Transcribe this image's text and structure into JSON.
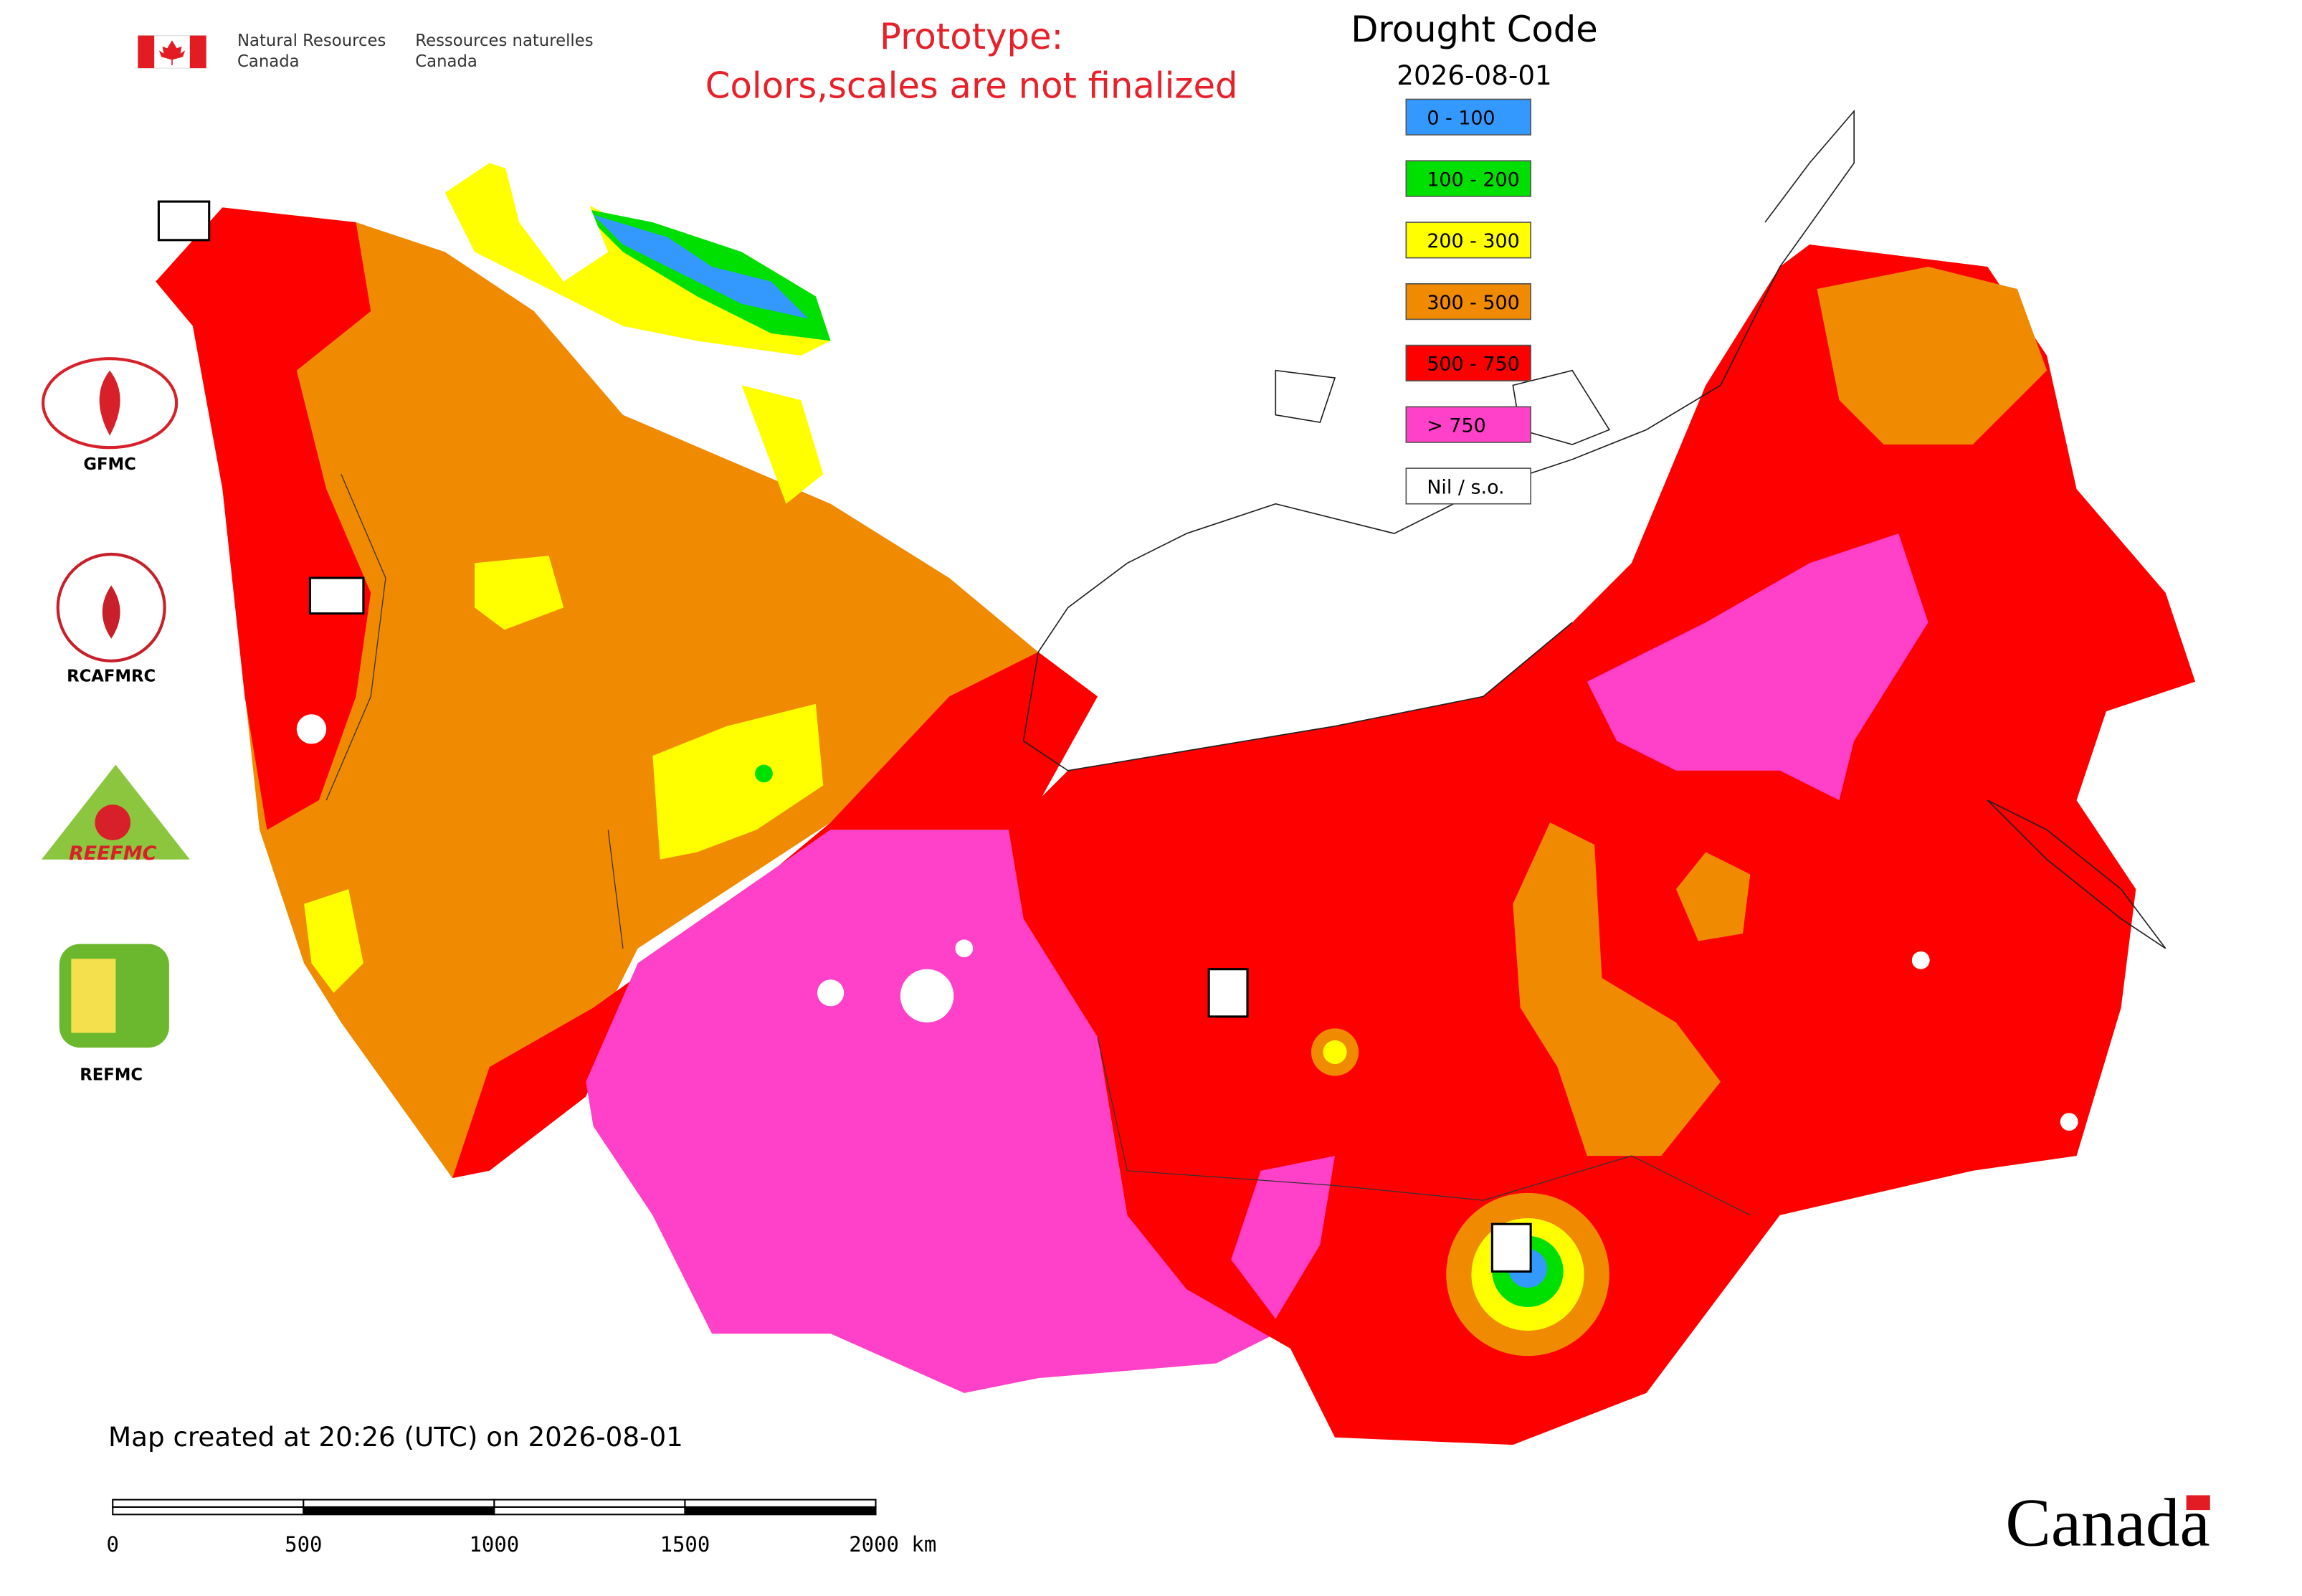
{
  "header": {
    "agency_en": [
      "Natural Resources",
      "Canada"
    ],
    "agency_fr": [
      "Ressources naturelles",
      "Canada"
    ]
  },
  "notice": [
    "Prototype:",
    "Colors,scales are not finalized"
  ],
  "legend": {
    "title": "Drought Code",
    "date": "2026-08-01",
    "items": [
      {
        "label": "0 - 100",
        "color": "#3399ff"
      },
      {
        "label": "100 - 200",
        "color": "#00e000"
      },
      {
        "label": "200 - 300",
        "color": "#ffff00"
      },
      {
        "label": "300 - 500",
        "color": "#f08a00"
      },
      {
        "label": "500 - 750",
        "color": "#ff0000"
      },
      {
        "label": "> 750",
        "color": "#ff40c8"
      },
      {
        "label": "Nil / s.o.",
        "color": "#ffffff"
      }
    ]
  },
  "partners": [
    "GFMC",
    "RCAFMRC",
    "REEFMC",
    "REFMC"
  ],
  "footer": {
    "created": "Map created at 20:26 (UTC) on 2026-08-01",
    "scale_labels": [
      "0",
      "500",
      "1000",
      "1500",
      "2000 km"
    ],
    "wordmark": "Canada"
  }
}
